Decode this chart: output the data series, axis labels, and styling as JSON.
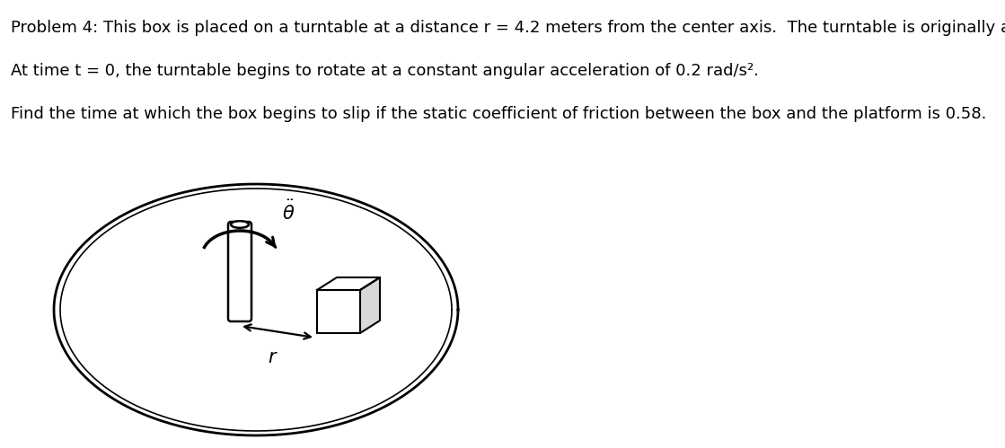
{
  "line1": "Problem 4: This box is placed on a turntable at a distance r = 4.2 meters from the center axis.  The turntable is originally at rest.",
  "line2": "At time t = 0, the turntable begins to rotate at a constant angular acceleration of 0.2 rad/s².",
  "line3": "Find the time at which the box begins to slip if the static coefficient of friction between the box and the platform is 0.58.",
  "text_color": "#000000",
  "bg_color": "#ffffff",
  "font_size": 13.0
}
